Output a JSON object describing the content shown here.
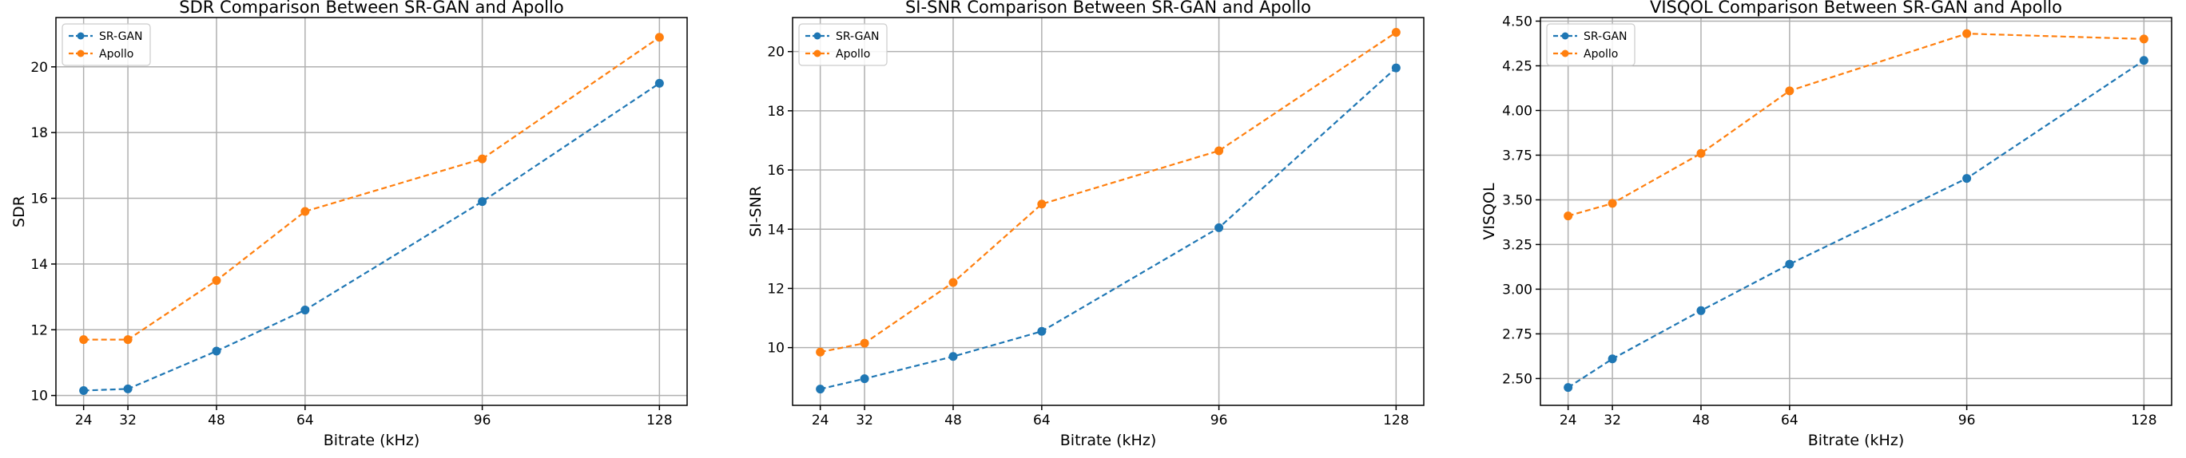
{
  "colors": {
    "srgan": "#1f77b4",
    "apollo": "#ff7f0e"
  },
  "chart_data": [
    {
      "type": "line",
      "title": "SDR Comparison Between SR-GAN and Apollo",
      "xlabel": "Bitrate (kHz)",
      "ylabel": "SDR",
      "x": [
        24,
        32,
        48,
        64,
        96,
        128
      ],
      "xticks": [
        24,
        32,
        48,
        64,
        96,
        128
      ],
      "xlim": [
        19,
        133
      ],
      "yticks": [
        10,
        12,
        14,
        16,
        18,
        20
      ],
      "ylim": [
        9.7,
        21.5
      ],
      "grid": true,
      "legend_position": "top-left",
      "series": [
        {
          "name": "SR-GAN",
          "values": [
            10.15,
            10.2,
            11.35,
            12.6,
            15.9,
            19.5
          ]
        },
        {
          "name": "Apollo",
          "values": [
            11.7,
            11.7,
            13.5,
            15.6,
            17.2,
            20.9
          ]
        }
      ]
    },
    {
      "type": "line",
      "title": "SI-SNR Comparison Between SR-GAN and Apollo",
      "xlabel": "Bitrate (kHz)",
      "ylabel": "SI-SNR",
      "x": [
        24,
        32,
        48,
        64,
        96,
        128
      ],
      "xticks": [
        24,
        32,
        48,
        64,
        96,
        128
      ],
      "xlim": [
        19,
        133
      ],
      "yticks": [
        10,
        12,
        14,
        16,
        18,
        20
      ],
      "ylim": [
        8.05,
        21.15
      ],
      "grid": true,
      "legend_position": "top-left",
      "series": [
        {
          "name": "SR-GAN",
          "values": [
            8.6,
            8.95,
            9.7,
            10.55,
            14.05,
            19.45
          ]
        },
        {
          "name": "Apollo",
          "values": [
            9.85,
            10.15,
            12.2,
            14.85,
            16.65,
            20.65
          ]
        }
      ]
    },
    {
      "type": "line",
      "title": "VISQOL Comparison Between SR-GAN and Apollo",
      "xlabel": "Bitrate (kHz)",
      "ylabel": "VISQOL",
      "x": [
        24,
        32,
        48,
        64,
        96,
        128
      ],
      "xticks": [
        24,
        32,
        48,
        64,
        96,
        128
      ],
      "xlim": [
        19,
        133
      ],
      "yticks": [
        2.5,
        2.75,
        3.0,
        3.25,
        3.5,
        3.75,
        4.0,
        4.25,
        4.5
      ],
      "ylim": [
        2.35,
        4.52
      ],
      "grid": true,
      "legend_position": "top-left",
      "series": [
        {
          "name": "SR-GAN",
          "values": [
            2.45,
            2.61,
            2.88,
            3.14,
            3.62,
            4.28
          ]
        },
        {
          "name": "Apollo",
          "values": [
            3.41,
            3.48,
            3.76,
            4.11,
            4.43,
            4.4
          ]
        }
      ]
    }
  ]
}
